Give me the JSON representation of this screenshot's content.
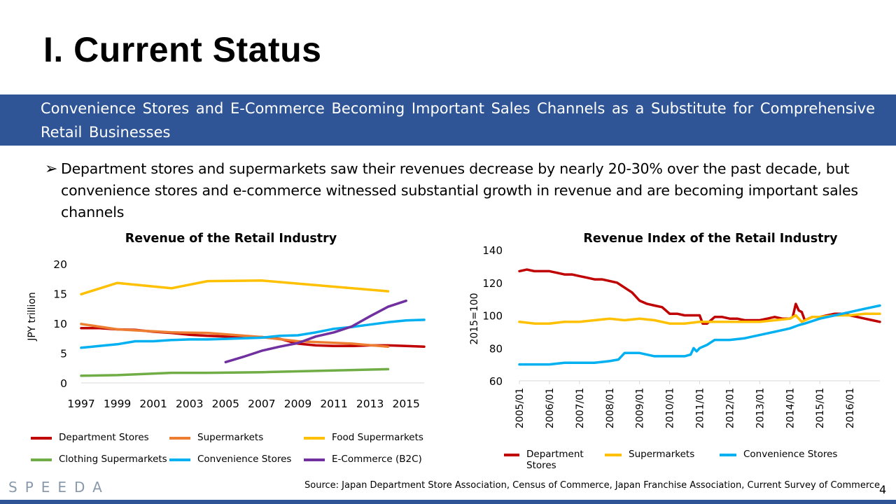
{
  "page": {
    "title": "I. Current Status",
    "banner": "Convenience Stores and E-Commerce Becoming Important Sales Channels as a Substitute for Comprehensive Retail Businesses",
    "bullet": "Department stores and supermarkets saw their revenues decrease by nearly 20-30% over the past decade, but convenience stores and e-commerce witnessed substantial growth in revenue and are becoming important sales channels",
    "bullet_marker": "➢",
    "source": "Source: Japan Department Store Association, Census of Commerce, Japan Franchise Association, Current Survey of Commerce",
    "page_number": "4",
    "logo": "SPEEDA"
  },
  "chart_data": [
    {
      "type": "line",
      "title": "Revenue of the Retail Industry",
      "ylabel": "JPY trillion",
      "xlabel": "",
      "ylim": [
        0,
        20
      ],
      "yticks": [
        0,
        5,
        10,
        15,
        20
      ],
      "xlim": [
        1997,
        2016
      ],
      "xticks": [
        1997,
        1999,
        2001,
        2003,
        2005,
        2007,
        2009,
        2011,
        2013,
        2015
      ],
      "grid": false,
      "legend": "bottom",
      "series": [
        {
          "name": "Department Stores",
          "color": "#c00000",
          "x": [
            1997,
            1998,
            1999,
            2000,
            2001,
            2002,
            2003,
            2004,
            2005,
            2006,
            2007,
            2008,
            2009,
            2010,
            2011,
            2012,
            2013,
            2014,
            2015,
            2016
          ],
          "values": [
            9.2,
            9.2,
            9.0,
            8.9,
            8.6,
            8.4,
            8.1,
            7.9,
            7.8,
            7.7,
            7.7,
            7.4,
            6.6,
            6.3,
            6.2,
            6.2,
            6.3,
            6.3,
            6.2,
            6.1
          ]
        },
        {
          "name": "Supermarkets",
          "color": "#ed7d31",
          "x": [
            1997,
            1999,
            2002,
            2004,
            2007,
            2009,
            2012,
            2014
          ],
          "values": [
            9.9,
            9.0,
            8.5,
            8.4,
            7.7,
            7.0,
            6.6,
            6.1
          ]
        },
        {
          "name": "Food Supermarkets",
          "color": "#ffc000",
          "x": [
            1997,
            1999,
            2002,
            2004,
            2007,
            2014
          ],
          "values": [
            14.9,
            16.8,
            15.9,
            17.1,
            17.2,
            15.4
          ]
        },
        {
          "name": "Clothing Supermarkets",
          "color": "#70ad47",
          "x": [
            1997,
            1999,
            2002,
            2004,
            2007,
            2014
          ],
          "values": [
            1.2,
            1.3,
            1.7,
            1.7,
            1.8,
            2.3
          ]
        },
        {
          "name": "Convenience Stores",
          "color": "#00b0f0",
          "x": [
            1997,
            1998,
            1999,
            2000,
            2001,
            2002,
            2003,
            2004,
            2005,
            2006,
            2007,
            2008,
            2009,
            2010,
            2011,
            2012,
            2013,
            2014,
            2015,
            2016
          ],
          "values": [
            5.9,
            6.2,
            6.5,
            7.0,
            7.0,
            7.2,
            7.3,
            7.3,
            7.4,
            7.5,
            7.6,
            7.9,
            8.0,
            8.5,
            9.1,
            9.4,
            9.8,
            10.2,
            10.5,
            10.6
          ]
        },
        {
          "name": "E-Commerce (B2C)",
          "color": "#7030a0",
          "x": [
            2005,
            2006,
            2007,
            2008,
            2009,
            2010,
            2011,
            2012,
            2013,
            2014,
            2015
          ],
          "values": [
            3.5,
            4.4,
            5.4,
            6.1,
            6.7,
            7.8,
            8.5,
            9.5,
            11.2,
            12.8,
            13.8
          ]
        }
      ]
    },
    {
      "type": "line",
      "title": "Revenue Index of the Retail Industry",
      "ylabel": "2015=100",
      "xlabel": "",
      "ylim": [
        60,
        140
      ],
      "yticks": [
        60,
        80,
        100,
        120,
        140
      ],
      "xlim": [
        2005,
        2017
      ],
      "xtick_labels": [
        "2005/01",
        "2006/01",
        "2007/01",
        "2008/01",
        "2009/01",
        "2010/01",
        "2011/01",
        "2012/01",
        "2013/01",
        "2014/01",
        "2015/01",
        "2016/01"
      ],
      "grid": false,
      "legend": "bottom",
      "series": [
        {
          "name": "Department Stores",
          "color": "#c00000",
          "x": [
            2005.0,
            2005.25,
            2005.5,
            2005.75,
            2006.0,
            2006.25,
            2006.5,
            2006.75,
            2007.0,
            2007.25,
            2007.5,
            2007.75,
            2008.0,
            2008.25,
            2008.5,
            2008.75,
            2009.0,
            2009.25,
            2009.5,
            2009.75,
            2010.0,
            2010.25,
            2010.5,
            2010.75,
            2011.0,
            2011.1,
            2011.25,
            2011.5,
            2011.75,
            2012.0,
            2012.25,
            2012.5,
            2012.75,
            2013.0,
            2013.25,
            2013.5,
            2013.75,
            2014.0,
            2014.1,
            2014.2,
            2014.3,
            2014.4,
            2014.5,
            2014.75,
            2015.0,
            2015.25,
            2015.5,
            2015.75,
            2016.0,
            2016.25,
            2016.5,
            2016.75,
            2017.0
          ],
          "values": [
            127,
            128,
            127,
            127,
            127,
            126,
            125,
            125,
            124,
            123,
            122,
            122,
            121,
            120,
            117,
            114,
            109,
            107,
            106,
            105,
            101,
            101,
            100,
            100,
            100,
            95,
            95,
            99,
            99,
            98,
            98,
            97,
            97,
            97,
            98,
            99,
            98,
            98,
            99,
            107,
            103,
            102,
            97,
            99,
            99,
            100,
            101,
            101,
            100,
            99,
            98,
            97,
            96
          ]
        },
        {
          "name": "Supermarkets",
          "color": "#ffc000",
          "x": [
            2005.0,
            2005.5,
            2006.0,
            2006.5,
            2007.0,
            2007.5,
            2008.0,
            2008.5,
            2009.0,
            2009.5,
            2010.0,
            2010.5,
            2011.0,
            2011.5,
            2012.0,
            2012.5,
            2013.0,
            2013.5,
            2014.0,
            2014.2,
            2014.4,
            2014.75,
            2015.0,
            2015.5,
            2016.0,
            2016.5,
            2017.0
          ],
          "values": [
            96,
            95,
            95,
            96,
            96,
            97,
            98,
            97,
            98,
            97,
            95,
            95,
            96,
            96,
            96,
            96,
            96,
            97,
            98,
            100,
            96,
            99,
            99,
            100,
            100,
            101,
            101
          ]
        },
        {
          "name": "Convenience Stores",
          "color": "#00b0f0",
          "x": [
            2005.0,
            2005.5,
            2006.0,
            2006.5,
            2007.0,
            2007.5,
            2008.0,
            2008.3,
            2008.5,
            2008.75,
            2009.0,
            2009.5,
            2010.0,
            2010.5,
            2010.7,
            2010.8,
            2010.9,
            2011.0,
            2011.25,
            2011.5,
            2011.75,
            2012.0,
            2012.5,
            2013.0,
            2013.5,
            2014.0,
            2014.3,
            2014.5,
            2015.0,
            2015.5,
            2016.0,
            2016.5,
            2017.0
          ],
          "values": [
            70,
            70,
            70,
            71,
            71,
            71,
            72,
            73,
            77,
            77,
            77,
            75,
            75,
            75,
            76,
            80,
            78,
            80,
            82,
            85,
            85,
            85,
            86,
            88,
            90,
            92,
            94,
            95,
            98,
            100,
            102,
            104,
            106
          ]
        }
      ]
    }
  ]
}
